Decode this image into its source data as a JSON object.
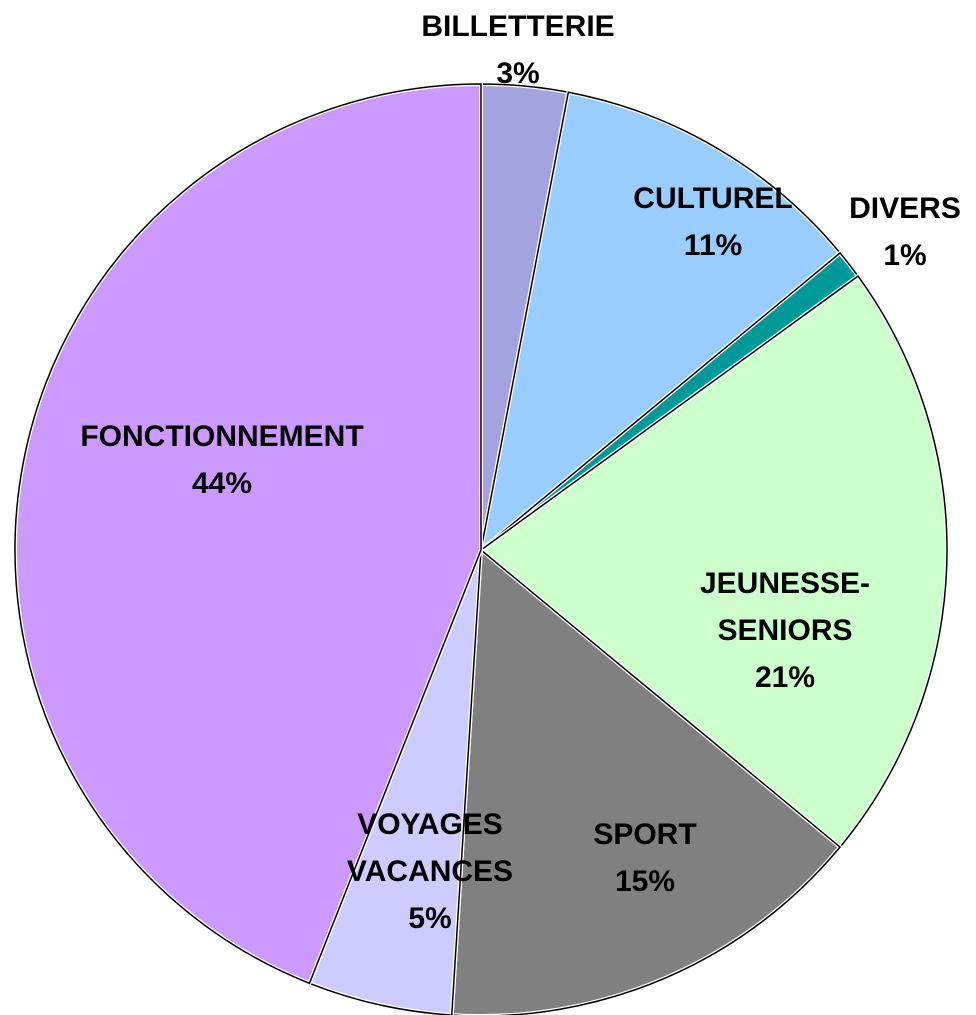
{
  "chart_data": {
    "type": "pie",
    "categories": [
      "BILLETTERIE",
      "CULTUREL",
      "DIVERS",
      "JEUNESSE-SENIORS",
      "SPORT",
      "VOYAGES VACANCES",
      "FONCTIONNEMENT"
    ],
    "values": [
      3,
      11,
      1,
      21,
      15,
      5,
      44
    ],
    "value_labels": [
      "3%",
      "11%",
      "1%",
      "21%",
      "15%",
      "5%",
      "44%"
    ],
    "colors": [
      "#a3a3e0",
      "#99ccff",
      "#009999",
      "#ccffcc",
      "#808080",
      "#ccccff",
      "#cc99ff"
    ]
  }
}
